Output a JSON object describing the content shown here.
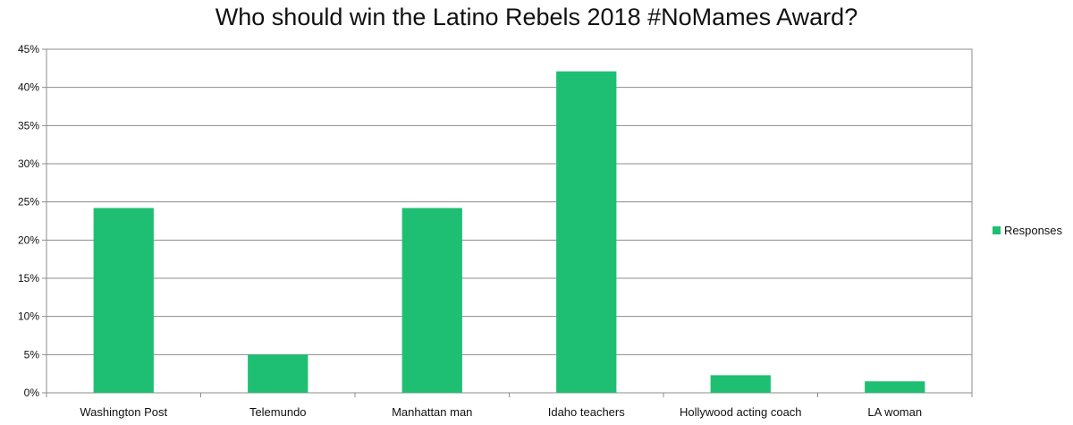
{
  "chart_data": {
    "type": "bar",
    "title": "Who should win the Latino Rebels 2018 #NoMames Award?",
    "xlabel": "",
    "ylabel": "",
    "categories": [
      "Washington Post",
      "Telemundo",
      "Manhattan man",
      "Idaho teachers",
      "Hollywood acting coach",
      "LA woman"
    ],
    "series": [
      {
        "name": "Responses",
        "color": "#1fbf73",
        "values": [
          24.2,
          5.0,
          24.2,
          42.1,
          2.3,
          1.5
        ]
      }
    ],
    "ylim": [
      0,
      45
    ],
    "yticks": [
      "0%",
      "5%",
      "10%",
      "15%",
      "20%",
      "25%",
      "30%",
      "35%",
      "40%",
      "45%"
    ],
    "grid": true,
    "legend_position": "right"
  }
}
